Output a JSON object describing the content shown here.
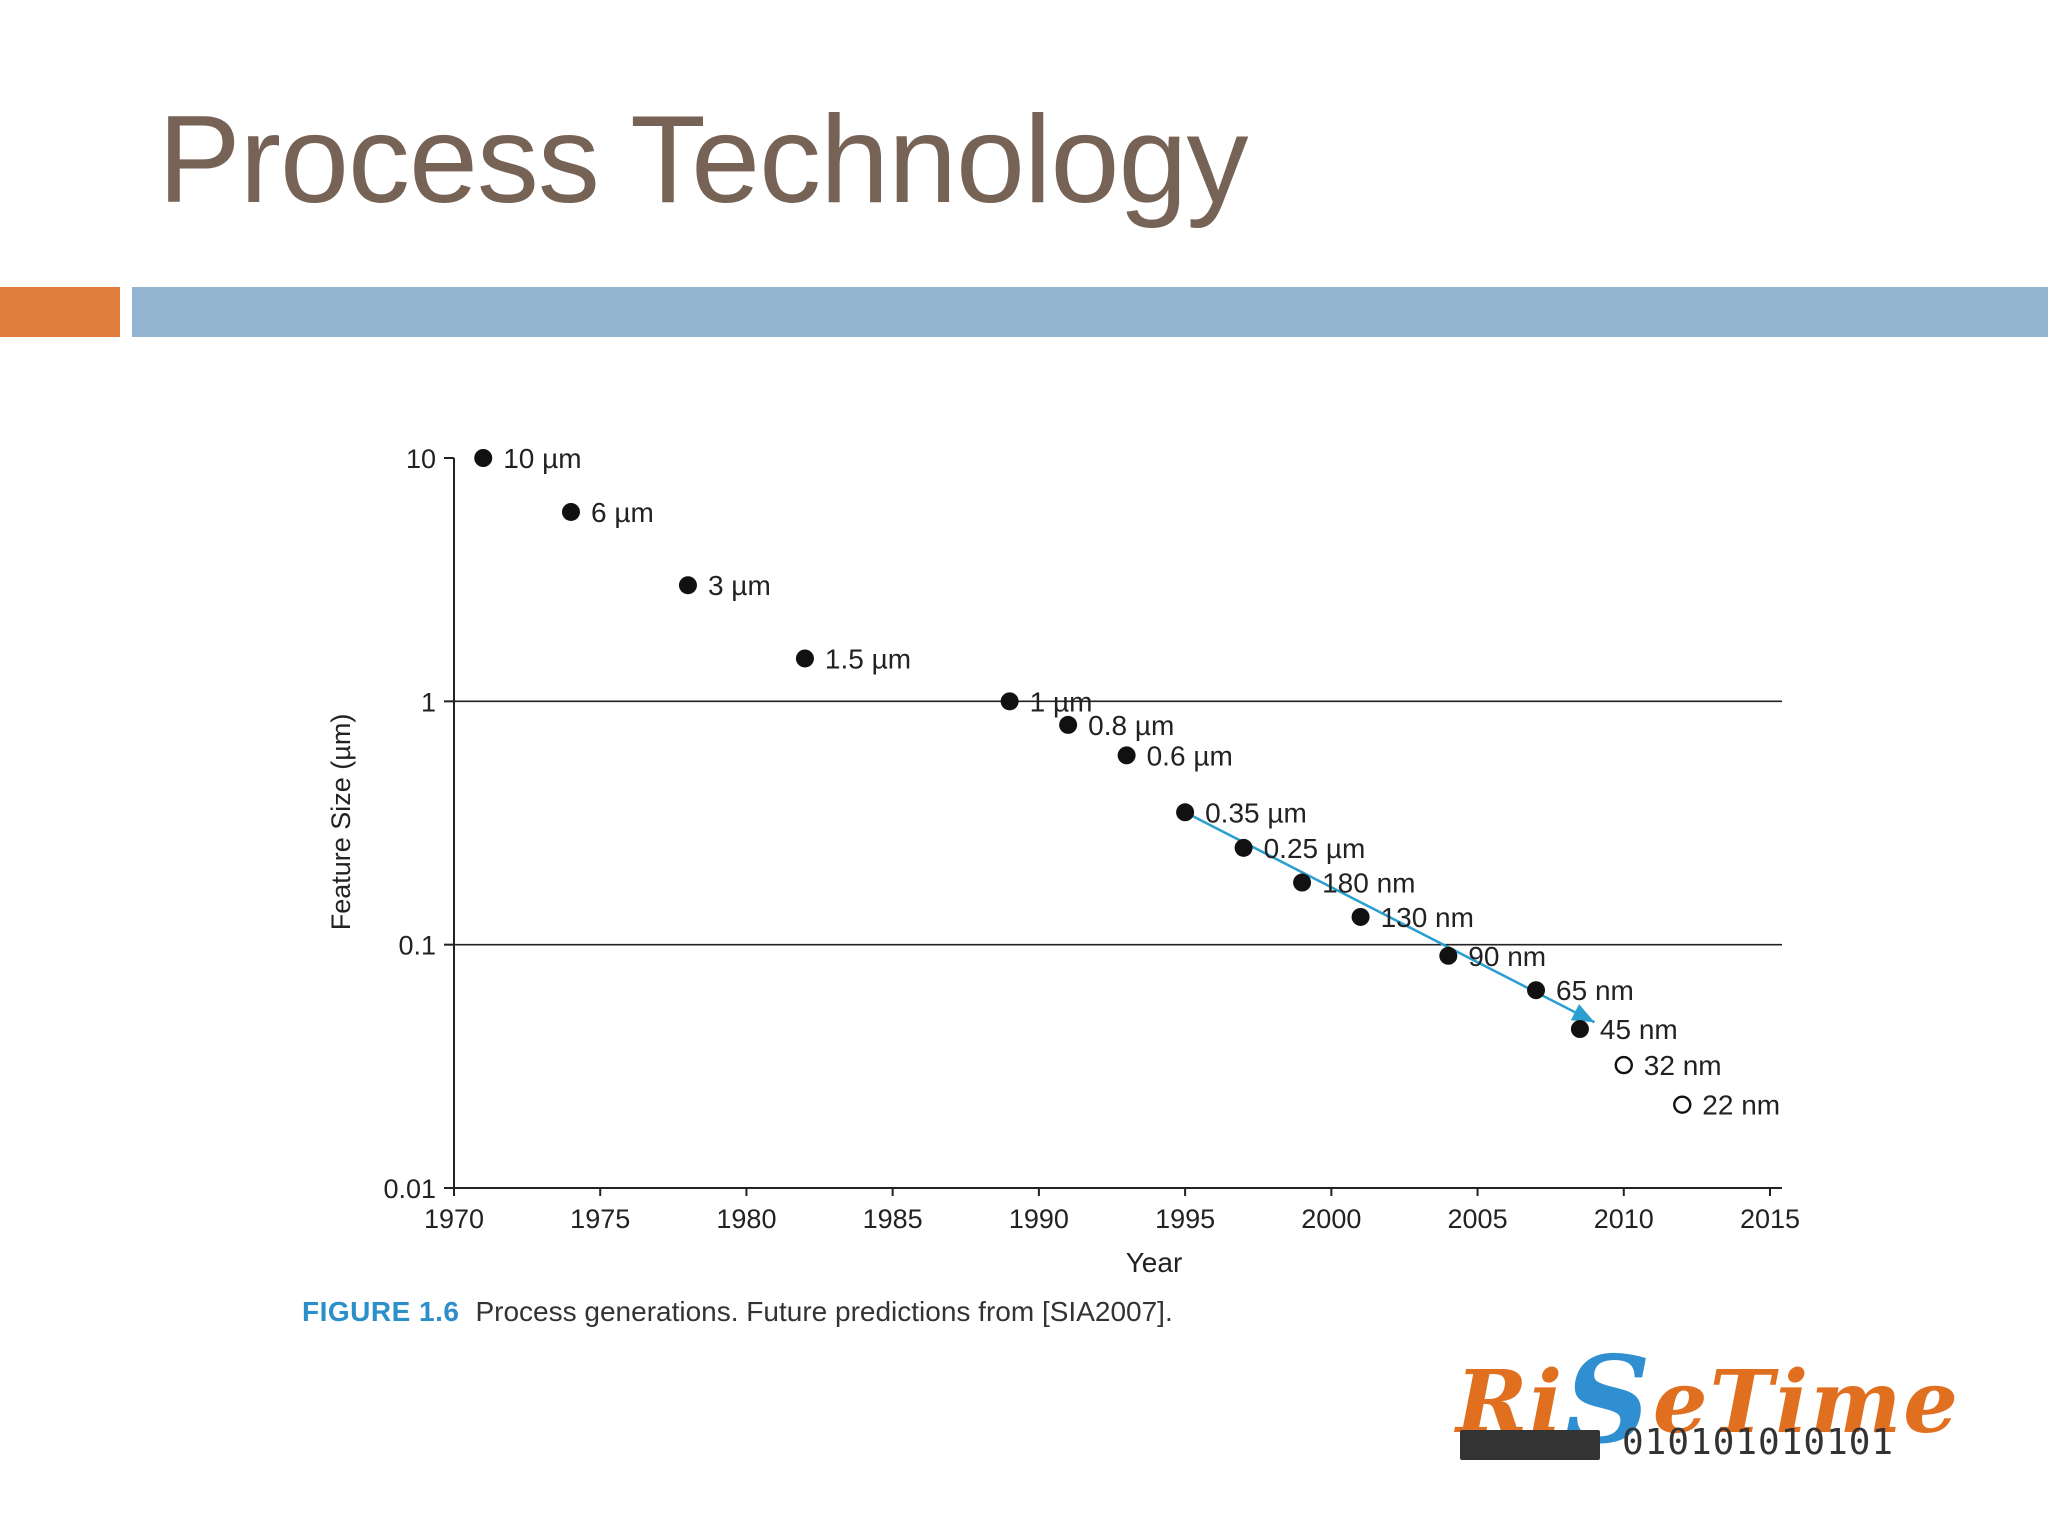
{
  "slide": {
    "title": "Process Technology",
    "accent_color": "#e07c3c",
    "bar_color": "#93b4d0",
    "title_color": "#776356"
  },
  "caption": {
    "label": "FIGURE 1.6",
    "text": "Process generations. Future predictions from [SIA2007]."
  },
  "logo": {
    "text_a": "Ri",
    "text_s": "S",
    "text_b": "eTime",
    "binary": "010101010101"
  },
  "chart_data": {
    "type": "scatter",
    "xlabel": "Year",
    "ylabel": "Feature Size (µm)",
    "xlim": [
      1970,
      2015
    ],
    "ylim": [
      0.01,
      10
    ],
    "y_scale": "log",
    "x_ticks": [
      1970,
      1975,
      1980,
      1985,
      1990,
      1995,
      2000,
      2005,
      2010,
      2015
    ],
    "y_ticks": [
      {
        "value": 10,
        "label": "10"
      },
      {
        "value": 1,
        "label": "1"
      },
      {
        "value": 0.1,
        "label": "0.1"
      },
      {
        "value": 0.01,
        "label": "0.01"
      }
    ],
    "gridlines_y": [
      1,
      0.1
    ],
    "series": [
      {
        "marker": "filled",
        "points": [
          {
            "x": 1971,
            "y": 10,
            "label": "10 µm"
          },
          {
            "x": 1974,
            "y": 6,
            "label": "6 µm"
          },
          {
            "x": 1978,
            "y": 3,
            "label": "3 µm"
          },
          {
            "x": 1982,
            "y": 1.5,
            "label": "1.5 µm"
          },
          {
            "x": 1989,
            "y": 1,
            "label": "1 µm"
          },
          {
            "x": 1991,
            "y": 0.8,
            "label": "0.8 µm"
          },
          {
            "x": 1993,
            "y": 0.6,
            "label": "0.6 µm"
          },
          {
            "x": 1995,
            "y": 0.35,
            "label": "0.35 µm"
          },
          {
            "x": 1997,
            "y": 0.25,
            "label": "0.25 µm"
          },
          {
            "x": 1999,
            "y": 0.18,
            "label": "180 nm"
          },
          {
            "x": 2001,
            "y": 0.13,
            "label": "130 nm"
          },
          {
            "x": 2004,
            "y": 0.09,
            "label": "90 nm"
          },
          {
            "x": 2007,
            "y": 0.065,
            "label": "65 nm"
          },
          {
            "x": 2008.5,
            "y": 0.045,
            "label": "45 nm"
          }
        ]
      },
      {
        "marker": "open",
        "points": [
          {
            "x": 2010,
            "y": 0.032,
            "label": "32 nm"
          },
          {
            "x": 2012,
            "y": 0.022,
            "label": "22 nm"
          }
        ]
      }
    ],
    "trend_line": {
      "color": "#2b9fcf",
      "from": {
        "x": 1995,
        "y": 0.35
      },
      "to": {
        "x": 2009,
        "y": 0.048
      }
    }
  }
}
